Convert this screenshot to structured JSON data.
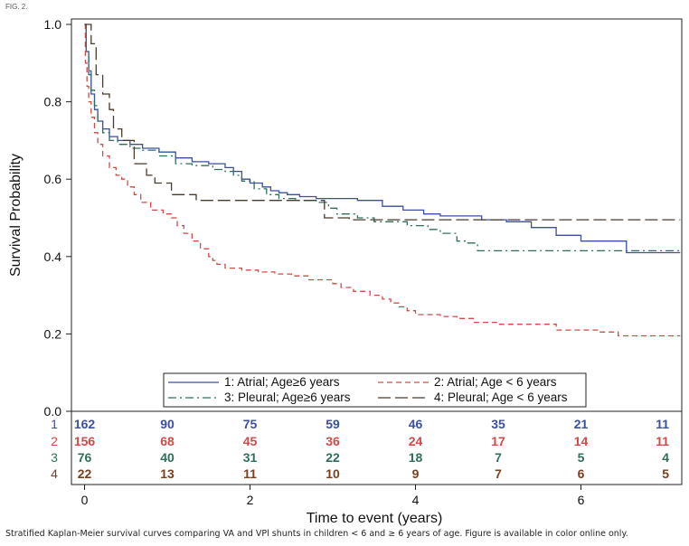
{
  "figure_label": "FIG. 2.",
  "caption": "Stratified Kaplan-Meier survival curves comparing VA and VPl shunts in children < 6 and ≥ 6 years of age. Figure is available in color online only.",
  "chart_data": {
    "type": "line",
    "step": true,
    "xlabel": "Time to event (years)",
    "ylabel": "Survival Probability",
    "xlim": [
      -0.2,
      7.2
    ],
    "ylim": [
      0,
      1.02
    ],
    "x_ticks": [
      0,
      2,
      4,
      6
    ],
    "x_tick_labels": [
      "0",
      "2",
      "4",
      "6"
    ],
    "y_ticks": [
      0.0,
      0.2,
      0.4,
      0.6,
      0.8,
      1.0
    ],
    "y_tick_labels": [
      "0.0",
      "0.2",
      "0.4",
      "0.6",
      "0.8",
      "1.0"
    ],
    "colors": {
      "s1": "#3a4f9e",
      "s2": "#d04a48",
      "s3": "#2e6f5c",
      "s4": "#4a3a2a"
    },
    "series": [
      {
        "name": "1: Atrial; Age≥6 years",
        "color": "#3a4f9e",
        "dash": "solid",
        "points": [
          [
            0,
            1.0
          ],
          [
            0.02,
            0.93
          ],
          [
            0.05,
            0.87
          ],
          [
            0.08,
            0.82
          ],
          [
            0.12,
            0.78
          ],
          [
            0.16,
            0.75
          ],
          [
            0.22,
            0.73
          ],
          [
            0.3,
            0.71
          ],
          [
            0.4,
            0.7
          ],
          [
            0.55,
            0.69
          ],
          [
            0.7,
            0.68
          ],
          [
            0.9,
            0.67
          ],
          [
            1.1,
            0.655
          ],
          [
            1.3,
            0.645
          ],
          [
            1.5,
            0.64
          ],
          [
            1.7,
            0.63
          ],
          [
            1.8,
            0.62
          ],
          [
            1.9,
            0.6
          ],
          [
            2.0,
            0.59
          ],
          [
            2.15,
            0.58
          ],
          [
            2.25,
            0.57
          ],
          [
            2.35,
            0.565
          ],
          [
            2.45,
            0.56
          ],
          [
            2.6,
            0.555
          ],
          [
            2.8,
            0.55
          ],
          [
            3.3,
            0.545
          ],
          [
            3.6,
            0.53
          ],
          [
            3.85,
            0.52
          ],
          [
            4.1,
            0.51
          ],
          [
            4.3,
            0.505
          ],
          [
            4.8,
            0.495
          ],
          [
            5.1,
            0.49
          ],
          [
            5.4,
            0.475
          ],
          [
            5.7,
            0.455
          ],
          [
            6.0,
            0.44
          ],
          [
            6.55,
            0.41
          ],
          [
            7.2,
            0.41
          ]
        ]
      },
      {
        "name": "2: Atrial; Age < 6 years",
        "color": "#d04a48",
        "dash": "dashed",
        "points": [
          [
            0,
            1.0
          ],
          [
            0.01,
            0.9
          ],
          [
            0.03,
            0.84
          ],
          [
            0.05,
            0.8
          ],
          [
            0.08,
            0.76
          ],
          [
            0.12,
            0.72
          ],
          [
            0.16,
            0.69
          ],
          [
            0.22,
            0.66
          ],
          [
            0.3,
            0.63
          ],
          [
            0.38,
            0.61
          ],
          [
            0.45,
            0.6
          ],
          [
            0.52,
            0.58
          ],
          [
            0.6,
            0.56
          ],
          [
            0.68,
            0.54
          ],
          [
            0.8,
            0.52
          ],
          [
            0.95,
            0.51
          ],
          [
            1.05,
            0.5
          ],
          [
            1.12,
            0.48
          ],
          [
            1.2,
            0.46
          ],
          [
            1.3,
            0.44
          ],
          [
            1.4,
            0.42
          ],
          [
            1.5,
            0.4
          ],
          [
            1.55,
            0.39
          ],
          [
            1.6,
            0.38
          ],
          [
            1.7,
            0.37
          ],
          [
            1.9,
            0.365
          ],
          [
            2.1,
            0.36
          ],
          [
            2.3,
            0.355
          ],
          [
            2.5,
            0.35
          ],
          [
            2.7,
            0.34
          ],
          [
            3.0,
            0.33
          ],
          [
            3.1,
            0.32
          ],
          [
            3.25,
            0.31
          ],
          [
            3.45,
            0.3
          ],
          [
            3.6,
            0.29
          ],
          [
            3.7,
            0.28
          ],
          [
            3.8,
            0.27
          ],
          [
            3.9,
            0.26
          ],
          [
            4.0,
            0.25
          ],
          [
            4.3,
            0.245
          ],
          [
            4.5,
            0.24
          ],
          [
            4.7,
            0.23
          ],
          [
            5.0,
            0.225
          ],
          [
            5.7,
            0.21
          ],
          [
            6.2,
            0.205
          ],
          [
            6.45,
            0.195
          ],
          [
            7.2,
            0.195
          ]
        ]
      },
      {
        "name": "3: Pleural; Age≥6 years",
        "color": "#2e6f5c",
        "dash": "dash-dot",
        "points": [
          [
            0,
            1.0
          ],
          [
            0.02,
            0.93
          ],
          [
            0.05,
            0.88
          ],
          [
            0.08,
            0.83
          ],
          [
            0.12,
            0.79
          ],
          [
            0.16,
            0.75
          ],
          [
            0.22,
            0.72
          ],
          [
            0.3,
            0.7
          ],
          [
            0.4,
            0.69
          ],
          [
            0.55,
            0.68
          ],
          [
            0.7,
            0.675
          ],
          [
            0.9,
            0.66
          ],
          [
            1.1,
            0.64
          ],
          [
            1.3,
            0.635
          ],
          [
            1.55,
            0.625
          ],
          [
            1.7,
            0.62
          ],
          [
            1.8,
            0.61
          ],
          [
            1.9,
            0.595
          ],
          [
            2.05,
            0.575
          ],
          [
            2.2,
            0.56
          ],
          [
            2.35,
            0.55
          ],
          [
            2.55,
            0.545
          ],
          [
            2.8,
            0.54
          ],
          [
            2.95,
            0.525
          ],
          [
            3.05,
            0.51
          ],
          [
            3.3,
            0.5
          ],
          [
            3.5,
            0.49
          ],
          [
            3.9,
            0.48
          ],
          [
            4.15,
            0.47
          ],
          [
            4.3,
            0.46
          ],
          [
            4.5,
            0.44
          ],
          [
            4.6,
            0.435
          ],
          [
            4.75,
            0.415
          ],
          [
            7.2,
            0.415
          ]
        ]
      },
      {
        "name": "4: Pleural; Age < 6 years",
        "color": "#4a3a2a",
        "dash": "long-dash",
        "points": [
          [
            0,
            1.0
          ],
          [
            0.08,
            1.0
          ],
          [
            0.08,
            0.95
          ],
          [
            0.14,
            0.95
          ],
          [
            0.14,
            0.87
          ],
          [
            0.22,
            0.87
          ],
          [
            0.22,
            0.82
          ],
          [
            0.3,
            0.82
          ],
          [
            0.3,
            0.78
          ],
          [
            0.35,
            0.78
          ],
          [
            0.35,
            0.73
          ],
          [
            0.45,
            0.73
          ],
          [
            0.45,
            0.7
          ],
          [
            0.6,
            0.7
          ],
          [
            0.6,
            0.64
          ],
          [
            0.75,
            0.64
          ],
          [
            0.75,
            0.61
          ],
          [
            0.85,
            0.61
          ],
          [
            0.85,
            0.59
          ],
          [
            1.05,
            0.59
          ],
          [
            1.05,
            0.56
          ],
          [
            1.35,
            0.56
          ],
          [
            1.35,
            0.545
          ],
          [
            2.9,
            0.545
          ],
          [
            2.9,
            0.5
          ],
          [
            3.2,
            0.5
          ],
          [
            3.2,
            0.495
          ],
          [
            7.2,
            0.495
          ]
        ]
      }
    ],
    "legend": [
      {
        "label": "1: Atrial; Age≥6 years",
        "color": "#3a4f9e",
        "dash": "solid"
      },
      {
        "label": "2: Atrial; Age < 6 years",
        "color": "#d04a48",
        "dash": "dashed"
      },
      {
        "label": "3: Pleural; Age≥6 years",
        "color": "#2e6f5c",
        "dash": "dash-dot"
      },
      {
        "label": "4: Pleural; Age < 6 years",
        "color": "#4a3a2a",
        "dash": "long-dash"
      }
    ],
    "legend_placement": "bottom-center",
    "risk_table": {
      "times": [
        0,
        1,
        2,
        3,
        4,
        5,
        6,
        7
      ],
      "rows": [
        {
          "label": "1",
          "color": "#3a4f9e",
          "values": [
            "162",
            "90",
            "75",
            "59",
            "46",
            "35",
            "21",
            "11"
          ]
        },
        {
          "label": "2",
          "color": "#d04a48",
          "values": [
            "156",
            "68",
            "45",
            "36",
            "24",
            "17",
            "14",
            "11"
          ]
        },
        {
          "label": "3",
          "color": "#2e6f5c",
          "values": [
            "76",
            "40",
            "31",
            "22",
            "18",
            "7",
            "5",
            "4"
          ]
        },
        {
          "label": "4",
          "color": "#7a3f1e",
          "values": [
            "22",
            "13",
            "11",
            "10",
            "9",
            "7",
            "6",
            "5"
          ]
        }
      ]
    }
  }
}
